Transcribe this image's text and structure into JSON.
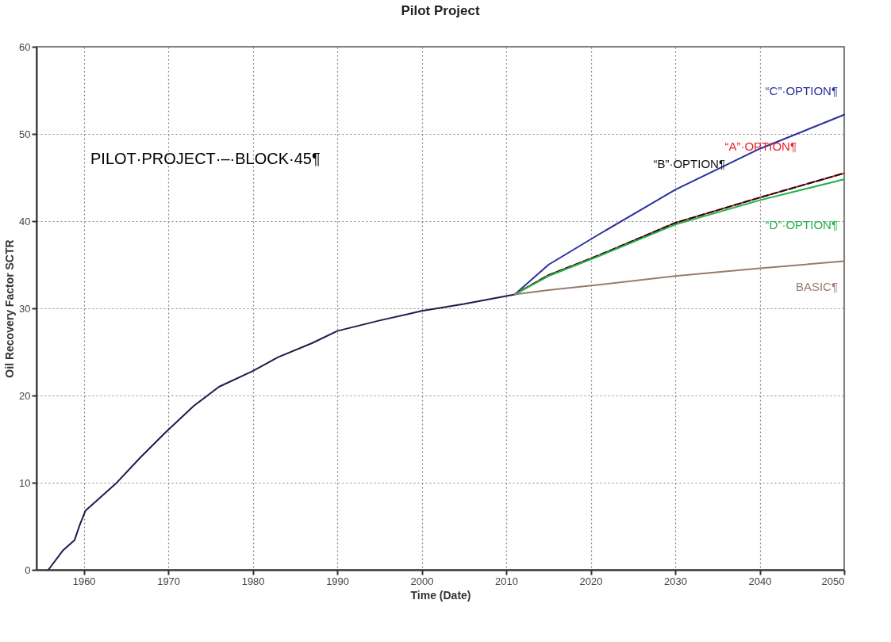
{
  "chart_data": {
    "type": "line",
    "title": "Pilot Project",
    "xlabel": "Time (Date)",
    "ylabel": "Oil Recovery Factor SCTR",
    "annotations": [
      "PILOT·PROJECT·–·BLOCK·45¶"
    ],
    "xlim": [
      1954.4,
      2050
    ],
    "xticks": [
      1960,
      1970,
      1980,
      1990,
      2000,
      2010,
      2020,
      2030,
      2040,
      2050
    ],
    "ylim": [
      0,
      60
    ],
    "yticks": [
      0,
      10,
      20,
      30,
      40,
      50,
      60
    ],
    "grid": true,
    "legend": false,
    "series": [
      {
        "color": "#1c1c4e",
        "x": [
          1955.8,
          1957.5,
          1958.9,
          1959.5,
          1960.2,
          1961.6,
          1963.8,
          1966.6,
          1969.7,
          1973,
          1976,
          1980,
          1983,
          1987,
          1990,
          1995,
          2000,
          2005,
          2011
        ],
        "values": [
          0,
          2.2,
          3.4,
          5.1,
          6.8,
          8.0,
          9.9,
          12.8,
          15.8,
          18.8,
          21.0,
          22.8,
          24.4,
          26.0,
          27.4,
          28.6,
          29.7,
          30.5,
          31.6
        ]
      },
      {
        "name": "“C”·OPTION¶",
        "color": "#2b2f9e",
        "x": [
          2011,
          2015,
          2021,
          2030,
          2040,
          2050
        ],
        "values": [
          31.6,
          35.0,
          38.5,
          43.6,
          48.3,
          52.2
        ]
      },
      {
        "name": "“A”·OPTION¶",
        "color": "#e8202a",
        "x": [
          2011,
          2015,
          2021,
          2030,
          2040,
          2050
        ],
        "values": [
          31.6,
          33.8,
          36.1,
          39.8,
          42.7,
          45.5
        ]
      },
      {
        "name": "“B”·OPTION¶",
        "color": "#111111",
        "line_style": "dashed",
        "x": [
          2011,
          2015,
          2021,
          2030,
          2040,
          2050
        ],
        "values": [
          31.6,
          33.8,
          36.1,
          39.8,
          42.7,
          45.5
        ]
      },
      {
        "name": "“D”·OPTION¶",
        "color": "#22b14c",
        "x": [
          2011,
          2015,
          2021,
          2030,
          2040,
          2050
        ],
        "values": [
          31.6,
          33.7,
          36.0,
          39.6,
          42.4,
          44.8
        ]
      },
      {
        "name": "BASIC¶",
        "color": "#9a7a6e",
        "x": [
          2011,
          2015,
          2021,
          2030,
          2040,
          2050
        ],
        "values": [
          31.6,
          32.1,
          32.7,
          33.7,
          34.6,
          35.4
        ]
      }
    ]
  }
}
